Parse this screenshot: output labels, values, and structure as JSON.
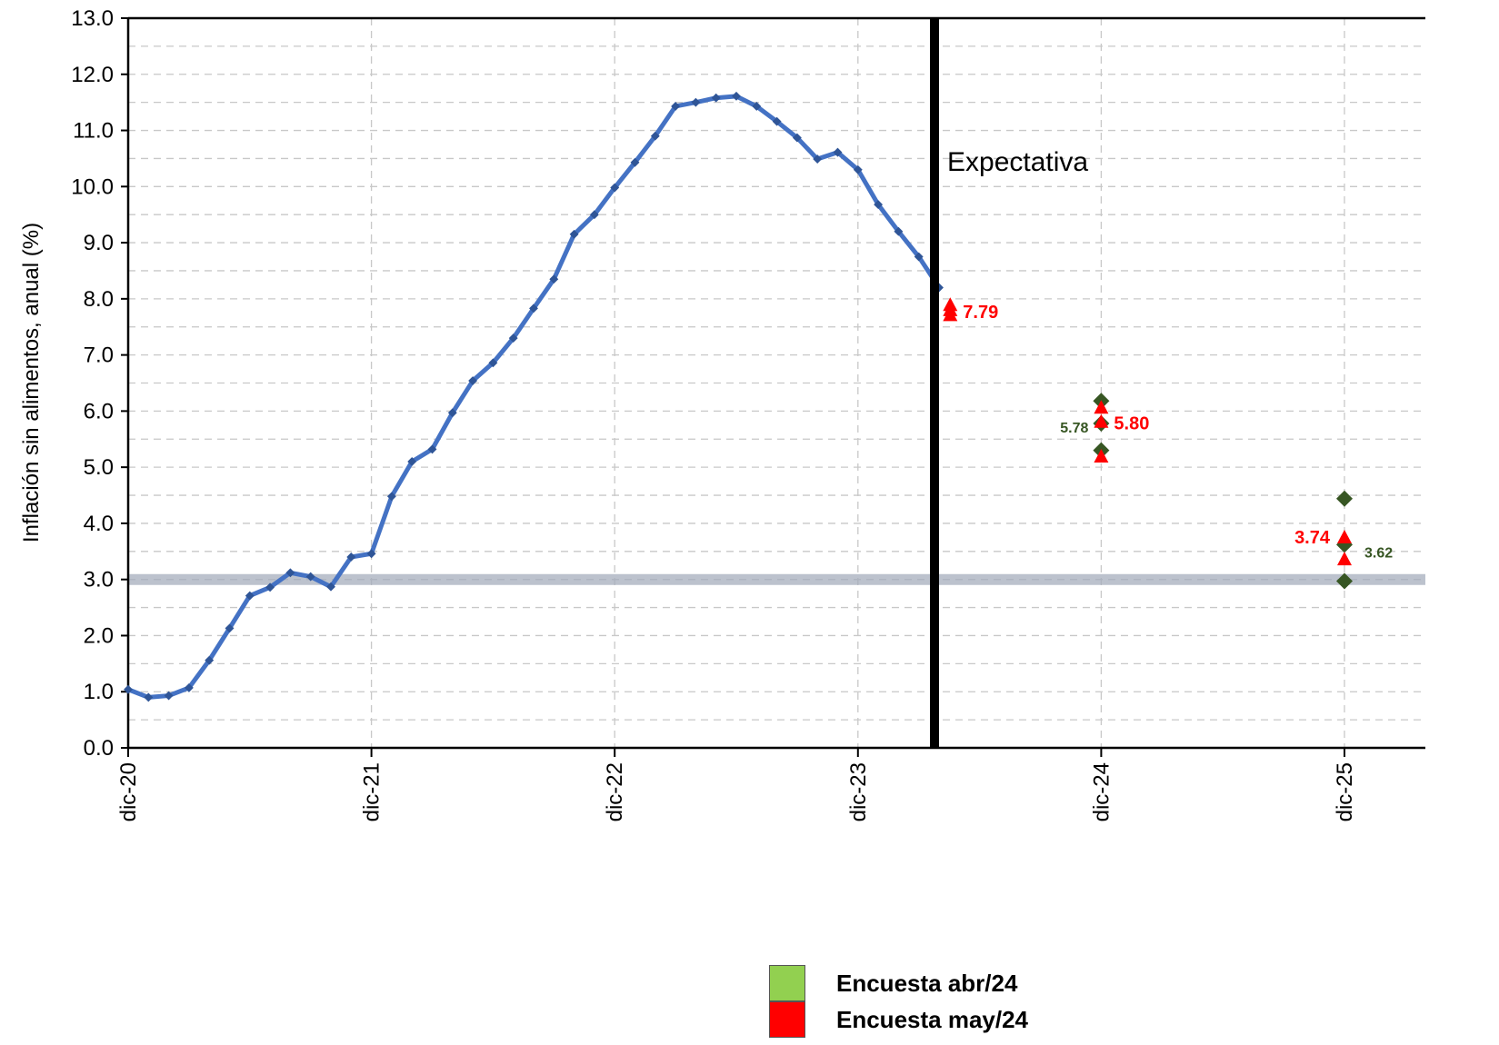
{
  "chart_data": {
    "type": "line",
    "ylabel": "Inflación  sin alimentos,  anual  (%)",
    "ylim": [
      0,
      13
    ],
    "yticks": [
      "0.0",
      "1.0",
      "2.0",
      "3.0",
      "4.0",
      "5.0",
      "6.0",
      "7.0",
      "8.0",
      "9.0",
      "10.0",
      "11.0",
      "12.0",
      "13.0"
    ],
    "xtick_labels": [
      "dic-20",
      "dic-21",
      "dic-22",
      "dic-23",
      "dic-24",
      "dic-25"
    ],
    "grid": true,
    "target_line": 3.0,
    "expectation_label": "Expectativa",
    "series": [
      {
        "name": "",
        "color": "#4472C4",
        "start": "dic-20",
        "frequency": "monthly",
        "values": [
          1.04,
          0.9,
          0.93,
          1.07,
          1.56,
          2.13,
          2.71,
          2.86,
          3.12,
          3.05,
          2.87,
          3.4,
          3.46,
          4.48,
          5.1,
          5.32,
          5.97,
          6.54,
          6.86,
          7.3,
          7.83,
          8.35,
          9.15,
          9.5,
          9.98,
          10.43,
          10.9,
          11.43,
          11.5,
          11.58,
          11.61,
          11.43,
          11.16,
          10.87,
          10.49,
          10.61,
          10.3,
          9.68,
          9.2,
          8.75,
          8.2
        ]
      },
      {
        "name": "Encuesta abr/24",
        "color": "#375623",
        "marker": "diamond",
        "points": [
          {
            "x": "dic-24",
            "values": [
              6.18,
              5.78,
              5.3
            ]
          },
          {
            "x": "dic-25",
            "values": [
              4.44,
              3.62,
              2.97
            ]
          }
        ]
      },
      {
        "name": "Encuesta may/24",
        "color": "#FF0000",
        "marker": "triangle",
        "points": [
          {
            "x": "may-24",
            "values": [
              7.88,
              7.79,
              7.7
            ]
          },
          {
            "x": "dic-24",
            "values": [
              6.05,
              5.8,
              5.18
            ]
          },
          {
            "x": "dic-25",
            "values": [
              3.74,
              3.35
            ]
          }
        ]
      }
    ],
    "annotations": [
      {
        "text": "7.79",
        "color": "#FF0000",
        "x": "may-24",
        "y": 7.79
      },
      {
        "text": "5.80",
        "color": "#FF0000",
        "x": "dic-24",
        "y": 5.8
      },
      {
        "text": "5.78",
        "color": "#375623",
        "x": "dic-24",
        "y": 5.78
      },
      {
        "text": "3.74",
        "color": "#FF0000",
        "x": "dic-25",
        "y": 3.74
      },
      {
        "text": "3.62",
        "color": "#375623",
        "x": "dic-25",
        "y": 3.62
      }
    ]
  },
  "legend": {
    "items": [
      {
        "label": "Encuesta abr/24",
        "color": "#92D050"
      },
      {
        "label": "Encuesta may/24",
        "color": "#FF0000"
      }
    ]
  }
}
